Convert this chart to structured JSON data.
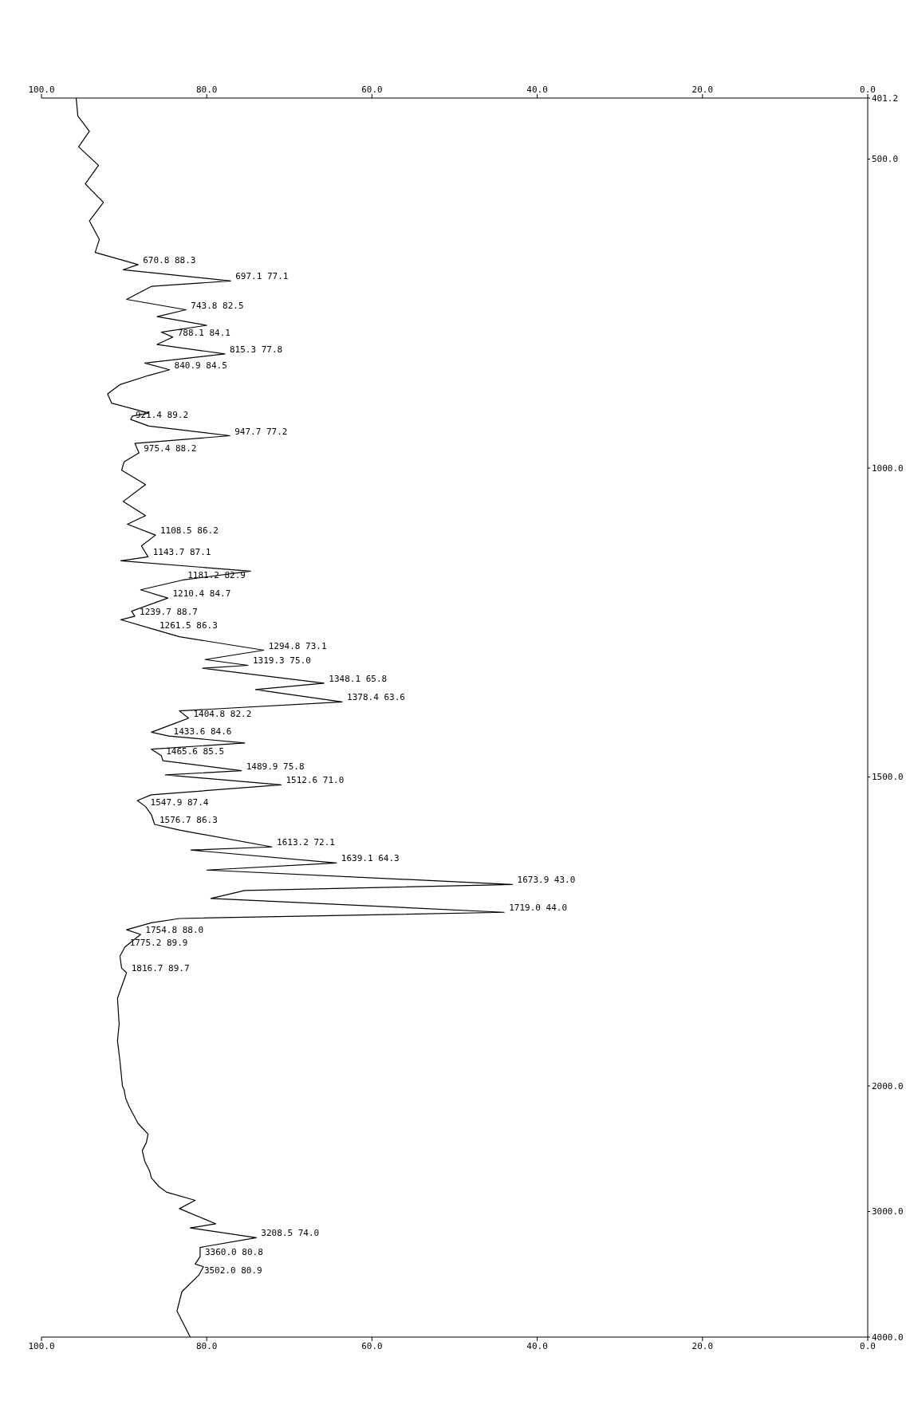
{
  "chart_data": [
    {
      "type": "line",
      "color": "#000000",
      "orientation": "horizontal",
      "x": [
        401.2,
        430,
        455,
        480,
        510,
        540,
        570,
        600,
        630,
        651,
        670.8,
        679,
        697.1,
        706,
        727,
        743.8,
        755,
        769,
        780,
        788.1,
        800,
        815.3,
        830,
        840.9,
        850,
        865,
        880,
        895,
        911,
        916,
        921.4,
        932,
        947.7,
        960,
        975.4,
        990,
        1003.6,
        1026.6,
        1054,
        1077,
        1091,
        1108.5,
        1126,
        1143.7,
        1150,
        1167,
        1181.2,
        1197,
        1210.4,
        1231.7,
        1239.7,
        1245.5,
        1261.5,
        1273,
        1294.8,
        1310,
        1319.3,
        1324,
        1348.1,
        1358.4,
        1378.4,
        1393,
        1404.8,
        1414,
        1427.5,
        1433.6,
        1445,
        1455,
        1465.6,
        1473.6,
        1489.9,
        1496.6,
        1512.6,
        1528.9,
        1538,
        1547.9,
        1561,
        1576.7,
        1586,
        1613.2,
        1618.3,
        1639.1,
        1650.6,
        1673.9,
        1683.7,
        1696.6,
        1719.0,
        1729,
        1736,
        1747.3,
        1754.8,
        1775.2,
        1790,
        1809.5,
        1816.7,
        1858,
        1900,
        1927,
        1960,
        2000
      ],
      "values": [
        95.8,
        95.6,
        94.2,
        95.5,
        93.1,
        94.7,
        92.5,
        94.2,
        93.0,
        93.5,
        88.3,
        90.1,
        77.1,
        86.7,
        89.7,
        82.5,
        86.0,
        80.0,
        85.5,
        84.1,
        86.0,
        77.8,
        87.5,
        84.5,
        87.0,
        90.5,
        92.0,
        91.5,
        87.0,
        89.0,
        89.2,
        87.0,
        77.2,
        88.7,
        88.2,
        90.0,
        90.3,
        87.4,
        90.1,
        87.4,
        89.6,
        86.2,
        87.9,
        87.1,
        90.4,
        74.7,
        82.9,
        88.0,
        84.7,
        89.1,
        88.7,
        90.4,
        86.3,
        83.3,
        73.1,
        80.2,
        75.0,
        80.5,
        65.8,
        74.1,
        63.6,
        83.3,
        82.2,
        84.0,
        86.7,
        84.6,
        75.4,
        86.7,
        85.5,
        85.3,
        75.8,
        85.0,
        71.0,
        86.7,
        88.4,
        87.4,
        86.7,
        86.3,
        83.3,
        72.1,
        81.9,
        64.3,
        80.0,
        43.0,
        75.4,
        79.5,
        44.0,
        83.3,
        86.7,
        89.7,
        88.0,
        89.9,
        90.5,
        90.3,
        89.7,
        90.8,
        90.6,
        90.8,
        90.5,
        90.2
      ],
      "ylim": [
        2000,
        401.2
      ],
      "yticks": [
        {
          "value": 401.2,
          "label": "401.2"
        },
        {
          "value": 500,
          "label": "500.0"
        },
        {
          "value": 1000,
          "label": "1000.0"
        },
        {
          "value": 1500,
          "label": "1500.0"
        },
        {
          "value": 2000,
          "label": "2000.0"
        }
      ],
      "xlim": [
        100,
        0
      ],
      "xticks": [
        {
          "value": 0,
          "label": "0.0"
        },
        {
          "value": 20,
          "label": "20.0"
        },
        {
          "value": 40,
          "label": "40.0"
        },
        {
          "value": 60,
          "label": "60.0"
        },
        {
          "value": 80,
          "label": "80.0"
        },
        {
          "value": 100,
          "label": "100.0"
        }
      ],
      "annotations": [
        {
          "text": "670.8 88.3",
          "x": 88.3,
          "y": 670.8
        },
        {
          "text": "697.1 77.1",
          "x": 77.1,
          "y": 697.1
        },
        {
          "text": "743.8 82.5",
          "x": 82.5,
          "y": 743.8
        },
        {
          "text": "788.1 84.1",
          "x": 84.1,
          "y": 788.1
        },
        {
          "text": "815.3 77.8",
          "x": 77.8,
          "y": 815.3
        },
        {
          "text": "840.9 84.5",
          "x": 84.5,
          "y": 840.9
        },
        {
          "text": "921.4 89.2",
          "x": 89.2,
          "y": 921.4
        },
        {
          "text": "947.7 77.2",
          "x": 77.2,
          "y": 947.7
        },
        {
          "text": "975.4 88.2",
          "x": 88.2,
          "y": 975.4
        },
        {
          "text": "1108.5 86.2",
          "x": 86.2,
          "y": 1108.5
        },
        {
          "text": "1143.7 87.1",
          "x": 87.1,
          "y": 1143.7
        },
        {
          "text": "1181.2 82.9",
          "x": 82.9,
          "y": 1181.2
        },
        {
          "text": "1210.4 84.7",
          "x": 84.7,
          "y": 1210.4
        },
        {
          "text": "1239.7 88.7",
          "x": 88.7,
          "y": 1239.7
        },
        {
          "text": "1261.5 86.3",
          "x": 86.3,
          "y": 1261.5
        },
        {
          "text": "1294.8 73.1",
          "x": 73.1,
          "y": 1294.8
        },
        {
          "text": "1319.3 75.0",
          "x": 75.0,
          "y": 1319.3
        },
        {
          "text": "1348.1 65.8",
          "x": 65.8,
          "y": 1348.1
        },
        {
          "text": "1378.4 63.6",
          "x": 63.6,
          "y": 1378.4
        },
        {
          "text": "1404.8 82.2",
          "x": 82.2,
          "y": 1404.8
        },
        {
          "text": "1433.6 84.6",
          "x": 84.6,
          "y": 1433.6
        },
        {
          "text": "1465.6 85.5",
          "x": 85.5,
          "y": 1465.6
        },
        {
          "text": "1489.9 75.8",
          "x": 75.8,
          "y": 1489.9
        },
        {
          "text": "1512.6 71.0",
          "x": 71.0,
          "y": 1512.6
        },
        {
          "text": "1547.9 87.4",
          "x": 87.4,
          "y": 1547.9
        },
        {
          "text": "1576.7 86.3",
          "x": 86.3,
          "y": 1576.7
        },
        {
          "text": "1613.2 72.1",
          "x": 72.1,
          "y": 1613.2
        },
        {
          "text": "1639.1 64.3",
          "x": 64.3,
          "y": 1639.1
        },
        {
          "text": "1673.9 43.0",
          "x": 43.0,
          "y": 1673.9
        },
        {
          "text": "1719.0 44.0",
          "x": 44.0,
          "y": 1719.0
        },
        {
          "text": "1754.8 88.0",
          "x": 88.0,
          "y": 1754.8
        },
        {
          "text": "1775.2 89.9",
          "x": 89.9,
          "y": 1775.2
        },
        {
          "text": "1816.7 89.7",
          "x": 89.7,
          "y": 1816.7
        }
      ]
    },
    {
      "type": "line",
      "color": "#000000",
      "orientation": "horizontal",
      "x": [
        2000,
        2031,
        2100,
        2163,
        2251,
        2300,
        2383,
        2450,
        2515,
        2600,
        2680,
        2733,
        2800,
        2845,
        2911,
        2977,
        3098,
        3131,
        3208.5,
        3286,
        3360,
        3418,
        3440,
        3502,
        3638,
        3792,
        4000
      ],
      "values": [
        90.2,
        90.0,
        89.8,
        89.4,
        88.7,
        88.3,
        87.1,
        87.3,
        87.8,
        87.5,
        86.9,
        86.7,
        85.8,
        84.9,
        81.4,
        83.3,
        78.9,
        82.0,
        74.0,
        80.8,
        80.8,
        81.4,
        80.4,
        80.9,
        83.0,
        83.6,
        82.0
      ],
      "ylim": [
        4000,
        2000
      ],
      "yticks": [
        {
          "value": 3000,
          "label": "3000.0"
        },
        {
          "value": 4000,
          "label": "4000.0"
        }
      ],
      "xlim": [
        100,
        0
      ],
      "xticks": [
        {
          "value": 0,
          "label": "0.0"
        },
        {
          "value": 20,
          "label": "20.0"
        },
        {
          "value": 40,
          "label": "40.0"
        },
        {
          "value": 60,
          "label": "60.0"
        },
        {
          "value": 80,
          "label": "80.0"
        },
        {
          "value": 100,
          "label": "100.0"
        }
      ],
      "annotations": [
        {
          "text": "3208.5 74.0",
          "x": 74.0,
          "y": 3208.5
        },
        {
          "text": "3360.0 80.8",
          "x": 80.8,
          "y": 3360
        },
        {
          "text": "3502.0 80.9",
          "x": 80.9,
          "y": 3502
        }
      ]
    }
  ]
}
